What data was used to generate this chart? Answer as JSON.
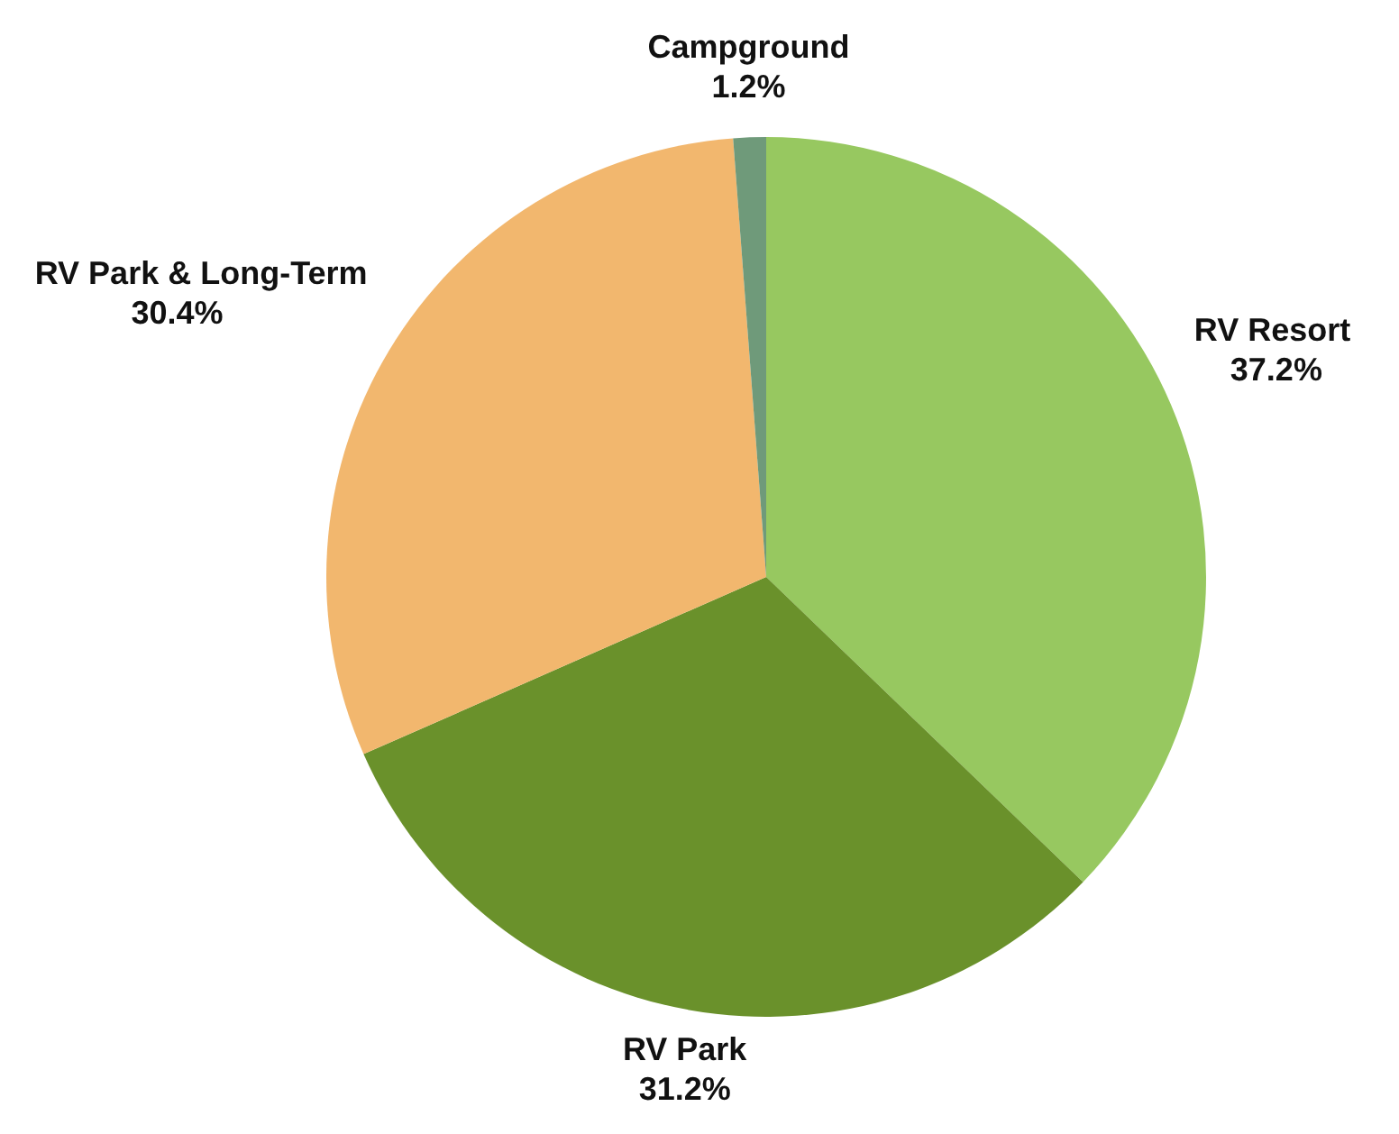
{
  "chart_data": {
    "type": "pie",
    "categories": [
      "RV Resort",
      "RV Park",
      "RV Park & Long-Term",
      "Campground"
    ],
    "values": [
      37.2,
      31.2,
      30.4,
      1.2
    ],
    "value_labels": [
      "37.2%",
      "31.2%",
      "30.4%",
      "1.2%"
    ],
    "colors": [
      "#97c860",
      "#6a912b",
      "#f2b76e",
      "#6f9a7a"
    ]
  }
}
